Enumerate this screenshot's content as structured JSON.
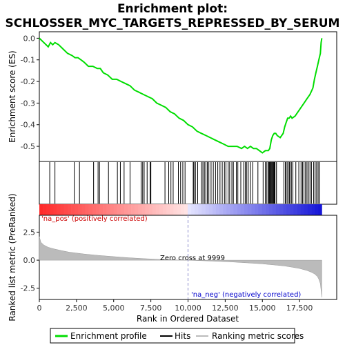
{
  "chart_data": {
    "type": "line",
    "title": "Enrichment plot:",
    "subtitle": "SCHLOSSER_MYC_TARGETS_REPRESSED_BY_SERUM",
    "xlabel": "Rank in Ordered Dataset",
    "top_ylabel": "Enrichment score (ES)",
    "bottom_ylabel": "Ranked list metric (PreRanked)",
    "xlim": [
      0,
      20000
    ],
    "top_ylim": [
      -0.57,
      0.03
    ],
    "bottom_ylim": [
      -3.5,
      4.0
    ],
    "x_ticks": [
      0,
      2500,
      5000,
      7500,
      10000,
      12500,
      15000,
      17500
    ],
    "x_tick_labels": [
      "0",
      "2,500",
      "5,000",
      "7,500",
      "10,000",
      "12,500",
      "15,000",
      "17,500"
    ],
    "top_y_ticks": [
      0.0,
      -0.1,
      -0.2,
      -0.3,
      -0.4,
      -0.5
    ],
    "top_y_tick_labels": [
      "0.0",
      "-0.1",
      "-0.2",
      "-0.3",
      "-0.4",
      "-0.5"
    ],
    "bottom_y_ticks": [
      2.5,
      0.0,
      -2.5
    ],
    "bottom_y_tick_labels": [
      "2.5",
      "0.0",
      "-2.5"
    ],
    "enrichment_profile": {
      "name": "Enrichment profile",
      "color": "#00dd00",
      "x": [
        0,
        300,
        600,
        750,
        900,
        1050,
        1300,
        1600,
        1900,
        2200,
        2400,
        2600,
        2800,
        3000,
        3300,
        3600,
        3900,
        4100,
        4300,
        4600,
        4900,
        5200,
        5500,
        5800,
        6100,
        6400,
        6700,
        7000,
        7300,
        7600,
        7900,
        8200,
        8500,
        8800,
        9100,
        9400,
        9700,
        10000,
        10300,
        10600,
        10900,
        11200,
        11500,
        11800,
        12100,
        12400,
        12700,
        13000,
        13300,
        13600,
        13800,
        14000,
        14200,
        14400,
        14600,
        14800,
        15000,
        15200,
        15400,
        15500,
        15600,
        15700,
        15800,
        15900,
        16000,
        16200,
        16400,
        16500,
        16600,
        16700,
        16800,
        16900,
        17000,
        17200,
        17400,
        17600,
        17800,
        18000,
        18200,
        18400,
        18500,
        18600,
        18700,
        18800,
        18900,
        18950,
        19000
      ],
      "y": [
        0.0,
        -0.02,
        -0.04,
        -0.02,
        -0.03,
        -0.02,
        -0.03,
        -0.05,
        -0.07,
        -0.08,
        -0.09,
        -0.09,
        -0.1,
        -0.11,
        -0.13,
        -0.13,
        -0.14,
        -0.14,
        -0.16,
        -0.17,
        -0.19,
        -0.19,
        -0.2,
        -0.21,
        -0.22,
        -0.24,
        -0.25,
        -0.26,
        -0.27,
        -0.28,
        -0.3,
        -0.31,
        -0.32,
        -0.34,
        -0.35,
        -0.37,
        -0.38,
        -0.4,
        -0.41,
        -0.43,
        -0.44,
        -0.45,
        -0.46,
        -0.47,
        -0.48,
        -0.49,
        -0.5,
        -0.5,
        -0.5,
        -0.51,
        -0.5,
        -0.51,
        -0.5,
        -0.51,
        -0.51,
        -0.52,
        -0.53,
        -0.52,
        -0.52,
        -0.51,
        -0.47,
        -0.45,
        -0.44,
        -0.44,
        -0.45,
        -0.46,
        -0.44,
        -0.41,
        -0.39,
        -0.37,
        -0.37,
        -0.36,
        -0.37,
        -0.36,
        -0.34,
        -0.32,
        -0.3,
        -0.28,
        -0.26,
        -0.23,
        -0.19,
        -0.16,
        -0.13,
        -0.1,
        -0.07,
        -0.02,
        0.0
      ]
    },
    "hits_x": [
      700,
      1050,
      2350,
      2700,
      3650,
      3950,
      4050,
      4650,
      5250,
      5450,
      5700,
      6100,
      6850,
      6950,
      7050,
      7250,
      7450,
      7500,
      8450,
      8700,
      8850,
      9000,
      9350,
      9500,
      9650,
      9800,
      10350,
      10400,
      10500,
      10650,
      10900,
      11000,
      11100,
      11200,
      11300,
      11400,
      11550,
      11700,
      11850,
      12000,
      12150,
      12300,
      12450,
      12550,
      12700,
      12800,
      12950,
      13050,
      13250,
      13350,
      13550,
      13750,
      13850,
      13950,
      14050,
      14200,
      14350,
      14700,
      15050,
      15200,
      15300,
      15400,
      15450,
      15500,
      15550,
      15600,
      15650,
      15700,
      15750,
      15800,
      15850,
      15950,
      16450,
      16550,
      16600,
      16700,
      16800,
      16850,
      16950,
      17050,
      17250,
      17450,
      17600,
      17700,
      17800,
      17900,
      18000,
      18100,
      18200,
      18300,
      18450,
      18550,
      18650,
      18750,
      18850
    ],
    "metric_x": [
      0,
      100,
      300,
      600,
      1000,
      1500,
      2000,
      3000,
      4000,
      5000,
      6000,
      7000,
      8000,
      9000,
      9999,
      11000,
      12000,
      13000,
      14000,
      15000,
      16000,
      16500,
      17000,
      17500,
      18000,
      18300,
      18500,
      18700,
      18800,
      18900,
      19000
    ],
    "metric_y": [
      2.1,
      1.6,
      1.35,
      1.15,
      1.0,
      0.85,
      0.72,
      0.55,
      0.42,
      0.32,
      0.22,
      0.14,
      0.08,
      0.03,
      0.0,
      -0.05,
      -0.1,
      -0.16,
      -0.24,
      -0.33,
      -0.45,
      -0.52,
      -0.62,
      -0.74,
      -0.92,
      -1.08,
      -1.22,
      -1.45,
      -1.7,
      -2.1,
      -3.3
    ],
    "zero_cross": 9999,
    "annotations": {
      "pos_label": "'na_pos' (positively correlated)",
      "neg_label": "'na_neg' (negatively correlated)",
      "zero_cross_label": "Zero cross at 9999"
    },
    "legend": {
      "placement": "bottom",
      "items": [
        {
          "label": "Enrichment profile",
          "color": "#00dd00"
        },
        {
          "label": "Hits",
          "color": "#000000"
        },
        {
          "label": "Ranking metric scores",
          "color": "#bbbbbb"
        }
      ]
    },
    "grid": false
  }
}
